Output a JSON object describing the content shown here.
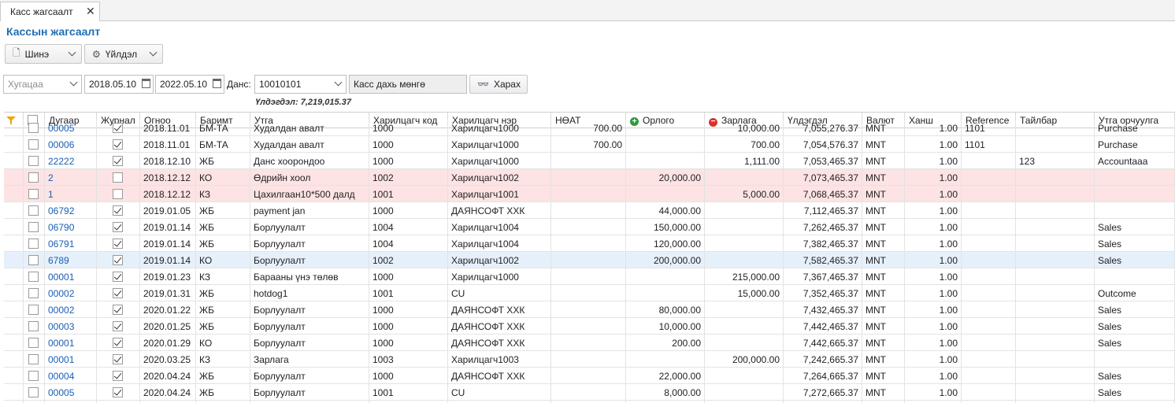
{
  "tab": {
    "label": "Касс жагсаалт"
  },
  "page_title": "Кассын жагсаалт",
  "toolbar": {
    "new_label": "Шинэ",
    "action_label": "Үйлдэл"
  },
  "filter": {
    "period_placeholder": "Хугацаа",
    "date_from": "2018.05.10",
    "date_to": "2022.05.10",
    "account_label": "Данс:",
    "account_value": "10010101",
    "cash_money_label": "Касс дахь мөнгө",
    "view_label": "Харах",
    "balance_text": "Үлдэгдэл: 7,219,015.37"
  },
  "columns": [
    "Дугаар",
    "Журнал",
    "Огноо",
    "Баримт",
    "Утга",
    "Харилцагч код",
    "Харилцагч нэр",
    "НӨАТ",
    "Орлого",
    "Зарлага",
    "Үлдэгдэл",
    "Валют",
    "Ханш",
    "Reference",
    "Тайлбар",
    "Утга орчуулга"
  ],
  "rows": [
    {
      "num": "00005",
      "journal": true,
      "date": "2018.11.01",
      "doc": "БМ-ТА",
      "desc": "Худалдан авалт",
      "pcode": "1000",
      "pname": "Харилцагч1000",
      "vat": "700.00",
      "inc": "",
      "exp": "10,000.00",
      "bal": "7,055,276.37",
      "cur": "MNT",
      "rate": "1.00",
      "ref": "1101",
      "note": "",
      "tr": "Purchase",
      "style": ""
    },
    {
      "num": "00006",
      "journal": true,
      "date": "2018.11.01",
      "doc": "БМ-ТА",
      "desc": "Худалдан авалт",
      "pcode": "1000",
      "pname": "Харилцагч1000",
      "vat": "700.00",
      "inc": "",
      "exp": "700.00",
      "bal": "7,054,576.37",
      "cur": "MNT",
      "rate": "1.00",
      "ref": "1101",
      "note": "",
      "tr": "Purchase",
      "style": ""
    },
    {
      "num": "22222",
      "journal": true,
      "date": "2018.12.10",
      "doc": "ЖБ",
      "desc": "Данс хоорондоо",
      "pcode": "1000",
      "pname": "Харилцагч1000",
      "vat": "",
      "inc": "",
      "exp": "1,111.00",
      "bal": "7,053,465.37",
      "cur": "MNT",
      "rate": "1.00",
      "ref": "",
      "note": "123",
      "tr": "Accountaaa",
      "style": ""
    },
    {
      "num": "2",
      "journal": false,
      "date": "2018.12.12",
      "doc": "КО",
      "desc": "Өдрийн хоол",
      "pcode": "1002",
      "pname": "Харилцагч1002",
      "vat": "",
      "inc": "20,000.00",
      "exp": "",
      "bal": "7,073,465.37",
      "cur": "MNT",
      "rate": "1.00",
      "ref": "",
      "note": "",
      "tr": "",
      "style": "pink"
    },
    {
      "num": "1",
      "journal": false,
      "date": "2018.12.12",
      "doc": "КЗ",
      "desc": "Цахилгаан10*500 далд",
      "pcode": "1001",
      "pname": "Харилцагч1001",
      "vat": "",
      "inc": "",
      "exp": "5,000.00",
      "bal": "7,068,465.37",
      "cur": "MNT",
      "rate": "1.00",
      "ref": "",
      "note": "",
      "tr": "",
      "style": "pink"
    },
    {
      "num": "06792",
      "journal": true,
      "date": "2019.01.05",
      "doc": "ЖБ",
      "desc": "payment jan",
      "pcode": "1000",
      "pname": "ДАЯНСОФТ ХХК",
      "vat": "",
      "inc": "44,000.00",
      "exp": "",
      "bal": "7,112,465.37",
      "cur": "MNT",
      "rate": "1.00",
      "ref": "",
      "note": "",
      "tr": "",
      "style": ""
    },
    {
      "num": "06790",
      "journal": true,
      "date": "2019.01.14",
      "doc": "ЖБ",
      "desc": "Борлуулалт",
      "pcode": "1004",
      "pname": "Харилцагч1004",
      "vat": "",
      "inc": "150,000.00",
      "exp": "",
      "bal": "7,262,465.37",
      "cur": "MNT",
      "rate": "1.00",
      "ref": "",
      "note": "",
      "tr": "Sales",
      "style": ""
    },
    {
      "num": "06791",
      "journal": true,
      "date": "2019.01.14",
      "doc": "ЖБ",
      "desc": "Борлуулалт",
      "pcode": "1004",
      "pname": "Харилцагч1004",
      "vat": "",
      "inc": "120,000.00",
      "exp": "",
      "bal": "7,382,465.37",
      "cur": "MNT",
      "rate": "1.00",
      "ref": "",
      "note": "",
      "tr": "Sales",
      "style": ""
    },
    {
      "num": "6789",
      "journal": true,
      "date": "2019.01.14",
      "doc": "КО",
      "desc": "Борлуулалт",
      "pcode": "1002",
      "pname": "Харилцагч1002",
      "vat": "",
      "inc": "200,000.00",
      "exp": "",
      "bal": "7,582,465.37",
      "cur": "MNT",
      "rate": "1.00",
      "ref": "",
      "note": "",
      "tr": "Sales",
      "style": "sel"
    },
    {
      "num": "00001",
      "journal": true,
      "date": "2019.01.23",
      "doc": "КЗ",
      "desc": "Барааны үнэ төлөв",
      "pcode": "1000",
      "pname": "Харилцагч1000",
      "vat": "",
      "inc": "",
      "exp": "215,000.00",
      "bal": "7,367,465.37",
      "cur": "MNT",
      "rate": "1.00",
      "ref": "",
      "note": "",
      "tr": "",
      "style": ""
    },
    {
      "num": "00002",
      "journal": true,
      "date": "2019.01.31",
      "doc": "ЖБ",
      "desc": "hotdog1",
      "pcode": "1001",
      "pname": "CU",
      "vat": "",
      "inc": "",
      "exp": "15,000.00",
      "bal": "7,352,465.37",
      "cur": "MNT",
      "rate": "1.00",
      "ref": "",
      "note": "",
      "tr": "Outcome",
      "style": ""
    },
    {
      "num": "00002",
      "journal": true,
      "date": "2020.01.22",
      "doc": "ЖБ",
      "desc": "Борлуулалт",
      "pcode": "1000",
      "pname": "ДАЯНСОФТ ХХК",
      "vat": "",
      "inc": "80,000.00",
      "exp": "",
      "bal": "7,432,465.37",
      "cur": "MNT",
      "rate": "1.00",
      "ref": "",
      "note": "",
      "tr": "Sales",
      "style": ""
    },
    {
      "num": "00003",
      "journal": true,
      "date": "2020.01.25",
      "doc": "ЖБ",
      "desc": "Борлуулалт",
      "pcode": "1000",
      "pname": "ДАЯНСОФТ ХХК",
      "vat": "",
      "inc": "10,000.00",
      "exp": "",
      "bal": "7,442,465.37",
      "cur": "MNT",
      "rate": "1.00",
      "ref": "",
      "note": "",
      "tr": "Sales",
      "style": ""
    },
    {
      "num": "00001",
      "journal": true,
      "date": "2020.01.29",
      "doc": "КО",
      "desc": "Борлуулалт",
      "pcode": "1000",
      "pname": "ДАЯНСОФТ ХХК",
      "vat": "",
      "inc": "200.00",
      "exp": "",
      "bal": "7,442,665.37",
      "cur": "MNT",
      "rate": "1.00",
      "ref": "",
      "note": "",
      "tr": "Sales",
      "style": ""
    },
    {
      "num": "00001",
      "journal": true,
      "date": "2020.03.25",
      "doc": "КЗ",
      "desc": "Зарлага",
      "pcode": "1003",
      "pname": "Харилцагч1003",
      "vat": "",
      "inc": "",
      "exp": "200,000.00",
      "bal": "7,242,665.37",
      "cur": "MNT",
      "rate": "1.00",
      "ref": "",
      "note": "",
      "tr": "",
      "style": ""
    },
    {
      "num": "00004",
      "journal": true,
      "date": "2020.04.24",
      "doc": "ЖБ",
      "desc": "Борлуулалт",
      "pcode": "1000",
      "pname": "ДАЯНСОФТ ХХК",
      "vat": "",
      "inc": "22,000.00",
      "exp": "",
      "bal": "7,264,665.37",
      "cur": "MNT",
      "rate": "1.00",
      "ref": "",
      "note": "",
      "tr": "Sales",
      "style": ""
    },
    {
      "num": "00005",
      "journal": true,
      "date": "2020.04.24",
      "doc": "ЖБ",
      "desc": "Борлуулалт",
      "pcode": "1001",
      "pname": "CU",
      "vat": "",
      "inc": "8,000.00",
      "exp": "",
      "bal": "7,272,665.37",
      "cur": "MNT",
      "rate": "1.00",
      "ref": "",
      "note": "",
      "tr": "Sales",
      "style": ""
    },
    {
      "num": "",
      "journal": true,
      "date": "",
      "doc": "",
      "desc": "",
      "pcode": "",
      "pname": "",
      "vat": "",
      "inc": "",
      "exp": "",
      "bal": "",
      "cur": "",
      "rate": "",
      "ref": "",
      "note": "",
      "tr": "",
      "style": ""
    }
  ]
}
